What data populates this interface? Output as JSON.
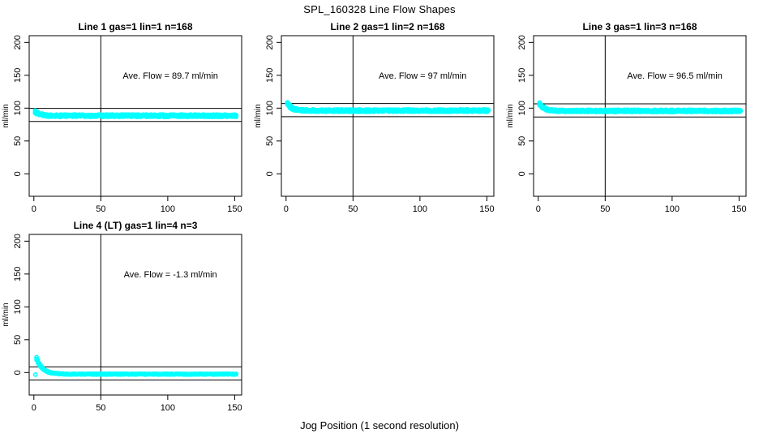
{
  "page": {
    "title": "SPL_160328  Line Flow Shapes",
    "xlabel": "Jog Position (1 second resolution)"
  },
  "chart_data": [
    {
      "type": "scatter",
      "title": "Line 1 gas=1 lin=1 n=168",
      "gas": 1,
      "lin": 1,
      "n": 168,
      "annotation": "Ave. Flow = 89.7 ml/min",
      "ave_flow_ml_min": 89.7,
      "ylabel": "ml/min",
      "x_ticks": [
        0,
        50,
        100,
        150
      ],
      "y_ticks": [
        0,
        50,
        100,
        150,
        200
      ],
      "xlim": [
        -3.5,
        155.2
      ],
      "ylim": [
        -34.2,
        210.3
      ],
      "ref_lines": {
        "vertical_x": 50,
        "horizontal_y": [
          99.7,
          79.7
        ]
      },
      "point_color": "#00ffff",
      "series_model": {
        "description": "flow vs jog position: starts ~95, decays to plateau ~88.5 by x~12, flat to x=151",
        "x_start": 1,
        "x_end": 151,
        "plateau": 88.5,
        "amplitude": 6.5,
        "tau": 3.2,
        "reps": 5,
        "jitter": 1.8,
        "seed": 7
      },
      "outliers": []
    },
    {
      "type": "scatter",
      "title": "Line 2 gas=1 lin=2 n=168",
      "gas": 1,
      "lin": 2,
      "n": 168,
      "annotation": "Ave. Flow = 97 ml/min",
      "ave_flow_ml_min": 97,
      "ylabel": "ml/min",
      "x_ticks": [
        0,
        50,
        100,
        150
      ],
      "y_ticks": [
        0,
        50,
        100,
        150,
        200
      ],
      "xlim": [
        -3.5,
        155.2
      ],
      "ylim": [
        -34.2,
        210.3
      ],
      "ref_lines": {
        "vertical_x": 50,
        "horizontal_y": [
          107,
          87
        ]
      },
      "point_color": "#00ffff",
      "series_model": {
        "description": "starts ~107, decays to plateau ~96 by x~15, flat to x=151",
        "x_start": 1,
        "x_end": 151,
        "plateau": 96.2,
        "amplitude": 11,
        "tau": 3.6,
        "reps": 5,
        "jitter": 1.8,
        "seed": 13
      },
      "outliers": []
    },
    {
      "type": "scatter",
      "title": "Line 3 gas=1 lin=3 n=168",
      "gas": 1,
      "lin": 3,
      "n": 168,
      "annotation": "Ave. Flow = 96.5 ml/min",
      "ave_flow_ml_min": 96.5,
      "ylabel": "ml/min",
      "x_ticks": [
        0,
        50,
        100,
        150
      ],
      "y_ticks": [
        0,
        50,
        100,
        150,
        200
      ],
      "xlim": [
        -3.5,
        155.2
      ],
      "ylim": [
        -34.2,
        210.3
      ],
      "ref_lines": {
        "vertical_x": 50,
        "horizontal_y": [
          106.5,
          86.5
        ]
      },
      "point_color": "#00ffff",
      "series_model": {
        "description": "starts ~106, decays to plateau ~95.8 by x~15, flat to x=151",
        "x_start": 1,
        "x_end": 151,
        "plateau": 95.8,
        "amplitude": 10.5,
        "tau": 3.6,
        "reps": 5,
        "jitter": 1.8,
        "seed": 21
      },
      "outliers": []
    },
    {
      "type": "scatter",
      "title": "Line 4 (LT) gas=1 lin=4 n=3",
      "gas": 1,
      "lin": 4,
      "n": 3,
      "annotation": "Ave. Flow = -1.3 ml/min",
      "ave_flow_ml_min": -1.3,
      "ylabel": "ml/min",
      "x_ticks": [
        0,
        50,
        100,
        150
      ],
      "y_ticks": [
        0,
        50,
        100,
        150,
        200
      ],
      "xlim": [
        -3.5,
        155.2
      ],
      "ylim": [
        -34.2,
        210.3
      ],
      "ref_lines": {
        "vertical_x": 50,
        "horizontal_y": [
          8.7,
          -11.3
        ]
      },
      "point_color": "#00ffff",
      "series_model": {
        "description": "spikes ~22 at x=2, decays to plateau ~-2.4 by x~25, flat to x=151; lone point near (1,-3)",
        "x_start": 2,
        "x_end": 151,
        "plateau": -2.4,
        "amplitude": 24,
        "tau": 4.5,
        "reps": 3,
        "jitter": 0.7,
        "seed": 29
      },
      "outliers": [
        {
          "x": 1.2,
          "y": -3.2
        }
      ]
    }
  ]
}
